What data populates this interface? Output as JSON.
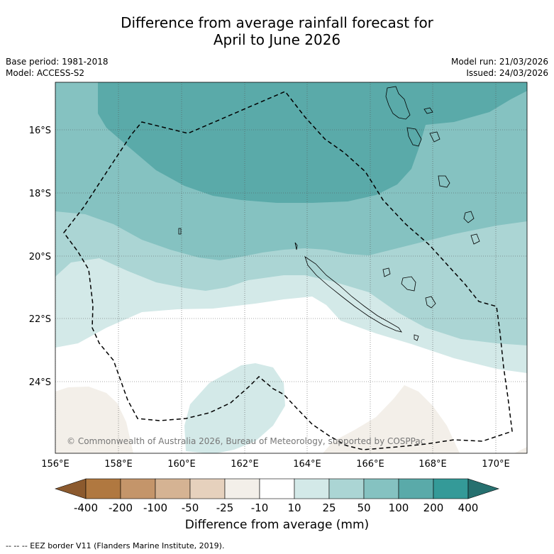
{
  "title_line1": "Difference from average rainfall forecast for",
  "title_line2": "April to June 2026",
  "base_period": "Base period: 1981-2018",
  "model": "Model: ACCESS-S2",
  "model_run": "Model run: 21/03/2026",
  "issued": "Issued: 24/03/2026",
  "copyright": "© Commonwealth of Australia 2026, Bureau of Meteorology, supported by COSPPac",
  "lat_labels": [
    "16°S",
    "18°S",
    "20°S",
    "22°S",
    "24°S"
  ],
  "lon_labels": [
    "156°E",
    "158°E",
    "160°E",
    "162°E",
    "164°E",
    "166°E",
    "168°E",
    "170°E"
  ],
  "colorbar": {
    "labels": [
      "-400",
      "-200",
      "-100",
      "-50",
      "-25",
      "-10",
      "10",
      "25",
      "50",
      "100",
      "200",
      "400"
    ],
    "colors": [
      "#8c5a2e",
      "#b07840",
      "#c4956a",
      "#d5b393",
      "#e6d1bd",
      "#f3efe9",
      "#ffffff",
      "#d3e9e8",
      "#abd5d4",
      "#85c2c1",
      "#5aaaa9",
      "#349a98",
      "#26706f"
    ],
    "title": "Difference from average (mm)"
  },
  "legend_footer": "--  --  -- EEZ border V11 (Flanders Marine Institute, 2019)."
}
